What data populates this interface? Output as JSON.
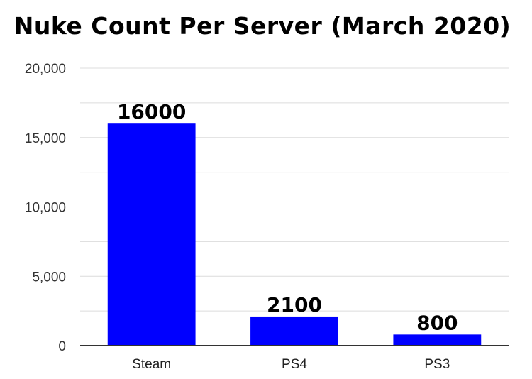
{
  "chart_data": {
    "type": "bar",
    "title": "Nuke Count Per Server (March 2020)",
    "xlabel": "",
    "ylabel": "",
    "categories": [
      "Steam",
      "PS4",
      "PS3"
    ],
    "values": [
      16000,
      2100,
      800
    ],
    "data_labels": [
      "16000",
      "2100",
      "800"
    ],
    "ylim": [
      0,
      20000
    ],
    "y_ticks": [
      0,
      5000,
      10000,
      15000,
      20000
    ],
    "y_tick_labels": [
      "0",
      "5,000",
      "10,000",
      "15,000",
      "20,000"
    ],
    "minor_grid_step": 2500,
    "grid": true,
    "legend": "none",
    "bar_color": "#0000ff"
  }
}
